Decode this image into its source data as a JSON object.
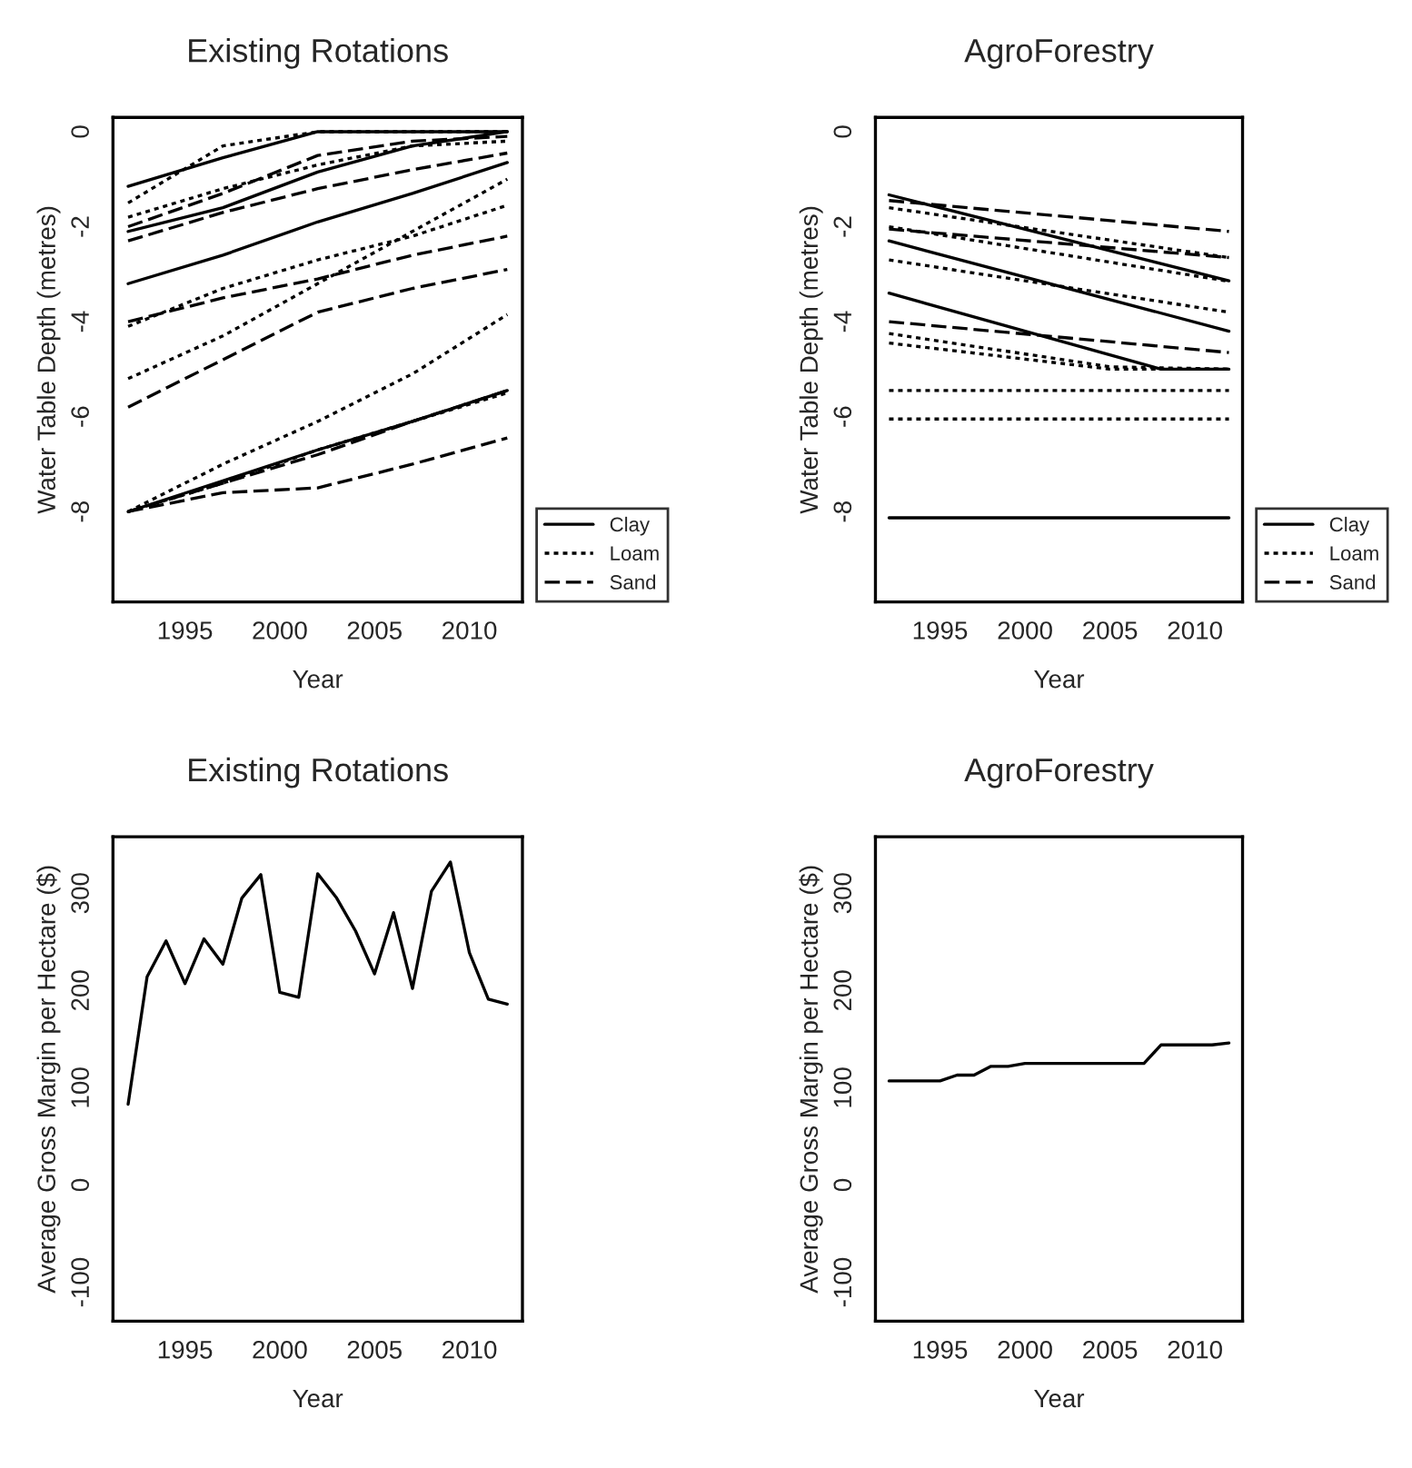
{
  "chart_data": [
    {
      "type": "line",
      "title": "Existing Rotations",
      "xlabel": "Year",
      "ylabel": "Water Table Depth (metres)",
      "xlim": [
        1991.2,
        2012.8
      ],
      "ylim": [
        -9.9,
        0.3
      ],
      "xticks": [
        1995,
        2000,
        2005,
        2010
      ],
      "yticks": [
        -8,
        -6,
        -4,
        -2,
        0
      ],
      "legend": "bottom right",
      "series": [
        {
          "name": "Clay",
          "color": "#000000",
          "line_style": "solid",
          "x": [
            1992,
            1997,
            2002,
            2007,
            2012
          ],
          "values": [
            -1.15,
            -0.55,
            0,
            0,
            0
          ]
        },
        {
          "color": "#000000",
          "line_style": "solid",
          "x": [
            1992,
            1997,
            2002,
            2007,
            2012
          ],
          "values": [
            -2.1,
            -1.6,
            -0.85,
            -0.3,
            0
          ]
        },
        {
          "color": "#000000",
          "line_style": "solid",
          "x": [
            1992,
            1997,
            2002,
            2007,
            2012
          ],
          "values": [
            -3.2,
            -2.6,
            -1.9,
            -1.3,
            -0.65
          ]
        },
        {
          "color": "#000000",
          "line_style": "solid",
          "x": [
            1992,
            1997,
            2002,
            2007,
            2012
          ],
          "values": [
            -8.0,
            -7.35,
            -6.7,
            -6.1,
            -5.45
          ]
        },
        {
          "name": "Loam",
          "color": "#000000",
          "line_style": "dotted",
          "x": [
            1992,
            1997,
            2002,
            2007,
            2012
          ],
          "values": [
            -1.5,
            -0.3,
            0,
            0,
            0
          ]
        },
        {
          "color": "#000000",
          "line_style": "dotted",
          "x": [
            1992,
            1997,
            2002,
            2007,
            2012
          ],
          "values": [
            -1.8,
            -1.2,
            -0.7,
            -0.3,
            -0.2
          ]
        },
        {
          "color": "#000000",
          "line_style": "dotted",
          "x": [
            1992,
            1997,
            2002,
            2007,
            2012
          ],
          "values": [
            -4.1,
            -3.3,
            -2.7,
            -2.2,
            -1.55
          ]
        },
        {
          "color": "#000000",
          "line_style": "dotted",
          "x": [
            1992,
            1997,
            2002,
            2007,
            2012
          ],
          "values": [
            -5.2,
            -4.3,
            -3.2,
            -2.1,
            -1.0
          ]
        },
        {
          "color": "#000000",
          "line_style": "dotted",
          "x": [
            1992,
            1997,
            2002,
            2007,
            2012
          ],
          "values": [
            -8.0,
            -7.0,
            -6.1,
            -5.1,
            -3.85
          ]
        },
        {
          "color": "#000000",
          "line_style": "dotted",
          "x": [
            1992,
            1997,
            2002,
            2007,
            2012
          ],
          "values": [
            -8.0,
            -7.4,
            -6.7,
            -6.1,
            -5.5
          ]
        },
        {
          "name": "Sand",
          "color": "#000000",
          "line_style": "dashed",
          "x": [
            1992,
            1997,
            2002,
            2007,
            2012
          ],
          "values": [
            -2.0,
            -1.3,
            -0.5,
            -0.2,
            -0.1
          ]
        },
        {
          "color": "#000000",
          "line_style": "dashed",
          "x": [
            1992,
            1997,
            2002,
            2007,
            2012
          ],
          "values": [
            -2.3,
            -1.7,
            -1.2,
            -0.8,
            -0.45
          ]
        },
        {
          "color": "#000000",
          "line_style": "dashed",
          "x": [
            1992,
            1997,
            2002,
            2007,
            2012
          ],
          "values": [
            -4.0,
            -3.5,
            -3.1,
            -2.6,
            -2.2
          ]
        },
        {
          "color": "#000000",
          "line_style": "dashed",
          "x": [
            1992,
            1997,
            2002,
            2007,
            2012
          ],
          "values": [
            -5.8,
            -4.8,
            -3.8,
            -3.3,
            -2.9
          ]
        },
        {
          "color": "#000000",
          "line_style": "dashed",
          "x": [
            1992,
            1997,
            2002,
            2007,
            2012
          ],
          "values": [
            -8.0,
            -7.6,
            -7.5,
            -7.0,
            -6.45
          ]
        },
        {
          "color": "#000000",
          "line_style": "dashed",
          "x": [
            1992,
            1997,
            2002,
            2007,
            2012
          ],
          "values": [
            -8.0,
            -7.4,
            -6.8,
            -6.1,
            -5.45
          ]
        }
      ]
    },
    {
      "type": "line",
      "title": "AgroForestry",
      "xlabel": "Year",
      "ylabel": "Water Table Depth (metres)",
      "xlim": [
        1991.2,
        2012.8
      ],
      "ylim": [
        -9.9,
        0.3
      ],
      "xticks": [
        1995,
        2000,
        2005,
        2010
      ],
      "yticks": [
        -8,
        -6,
        -4,
        -2,
        0
      ],
      "legend": "bottom right",
      "series": [
        {
          "name": "Clay",
          "color": "#000000",
          "line_style": "solid",
          "x": [
            1992,
            2012
          ],
          "values": [
            -1.33,
            -3.14
          ]
        },
        {
          "color": "#000000",
          "line_style": "solid",
          "x": [
            1992,
            2012
          ],
          "values": [
            -2.3,
            -4.2
          ]
        },
        {
          "color": "#000000",
          "line_style": "solid",
          "x": [
            1992,
            2008,
            2012
          ],
          "values": [
            -3.4,
            -5.0,
            -5.0
          ]
        },
        {
          "color": "#000000",
          "line_style": "solid",
          "x": [
            1992,
            2012
          ],
          "values": [
            -8.13,
            -8.13
          ]
        },
        {
          "name": "Loam",
          "color": "#000000",
          "line_style": "dotted",
          "x": [
            1992,
            2012
          ],
          "values": [
            -1.6,
            -2.65
          ]
        },
        {
          "color": "#000000",
          "line_style": "dotted",
          "x": [
            1992,
            2012
          ],
          "values": [
            -2.0,
            -3.15
          ]
        },
        {
          "color": "#000000",
          "line_style": "dotted",
          "x": [
            1992,
            2012
          ],
          "values": [
            -2.7,
            -3.8
          ]
        },
        {
          "color": "#000000",
          "line_style": "dotted",
          "x": [
            1992,
            2005,
            2012
          ],
          "values": [
            -4.25,
            -4.95,
            -5.0
          ]
        },
        {
          "color": "#000000",
          "line_style": "dotted",
          "x": [
            1992,
            2005,
            2012
          ],
          "values": [
            -4.45,
            -5.0,
            -5.0
          ]
        },
        {
          "color": "#000000",
          "line_style": "dotted",
          "x": [
            1992,
            2012
          ],
          "values": [
            -5.45,
            -5.45
          ]
        },
        {
          "color": "#000000",
          "line_style": "dotted",
          "x": [
            1992,
            2012
          ],
          "values": [
            -6.05,
            -6.05
          ]
        },
        {
          "name": "Sand",
          "color": "#000000",
          "line_style": "dashed",
          "x": [
            1992,
            2012
          ],
          "values": [
            -1.45,
            -2.1
          ]
        },
        {
          "color": "#000000",
          "line_style": "dashed",
          "x": [
            1992,
            2012
          ],
          "values": [
            -2.05,
            -2.65
          ]
        },
        {
          "color": "#000000",
          "line_style": "dashed",
          "x": [
            1992,
            2012
          ],
          "values": [
            -4.0,
            -4.65
          ]
        }
      ]
    },
    {
      "type": "line",
      "title": "Existing Rotations",
      "xlabel": "Year",
      "ylabel": "Average Gross Margin per Hectare ($)",
      "xlim": [
        1991.2,
        2012.8
      ],
      "ylim": [
        -140,
        358
      ],
      "xticks": [
        1995,
        2000,
        2005,
        2010
      ],
      "yticks": [
        -100,
        0,
        100,
        200,
        300
      ],
      "series": [
        {
          "color": "#000000",
          "line_style": "solid",
          "x": [
            1992,
            1993,
            1994,
            1995,
            1996,
            1997,
            1998,
            1999,
            2000,
            2001,
            2002,
            2003,
            2004,
            2005,
            2006,
            2007,
            2008,
            2009,
            2010,
            2011,
            2012
          ],
          "values": [
            83,
            214,
            251,
            207,
            253,
            227,
            295,
            319,
            198,
            193,
            320,
            295,
            261,
            217,
            280,
            202,
            302,
            332,
            239,
            191,
            186
          ]
        }
      ]
    },
    {
      "type": "line",
      "title": "AgroForestry",
      "xlabel": "Year",
      "ylabel": "Average Gross Margin per Hectare ($)",
      "xlim": [
        1991.2,
        2012.8
      ],
      "ylim": [
        -140,
        358
      ],
      "xticks": [
        1995,
        2000,
        2005,
        2010
      ],
      "yticks": [
        -100,
        0,
        100,
        200,
        300
      ],
      "series": [
        {
          "color": "#000000",
          "line_style": "solid",
          "x": [
            1992,
            1995,
            1996,
            1997,
            1998,
            1999,
            2000,
            2007,
            2008,
            2011,
            2012
          ],
          "values": [
            107,
            107,
            113,
            113,
            122,
            122,
            125,
            125,
            144,
            144,
            146
          ]
        }
      ]
    }
  ]
}
